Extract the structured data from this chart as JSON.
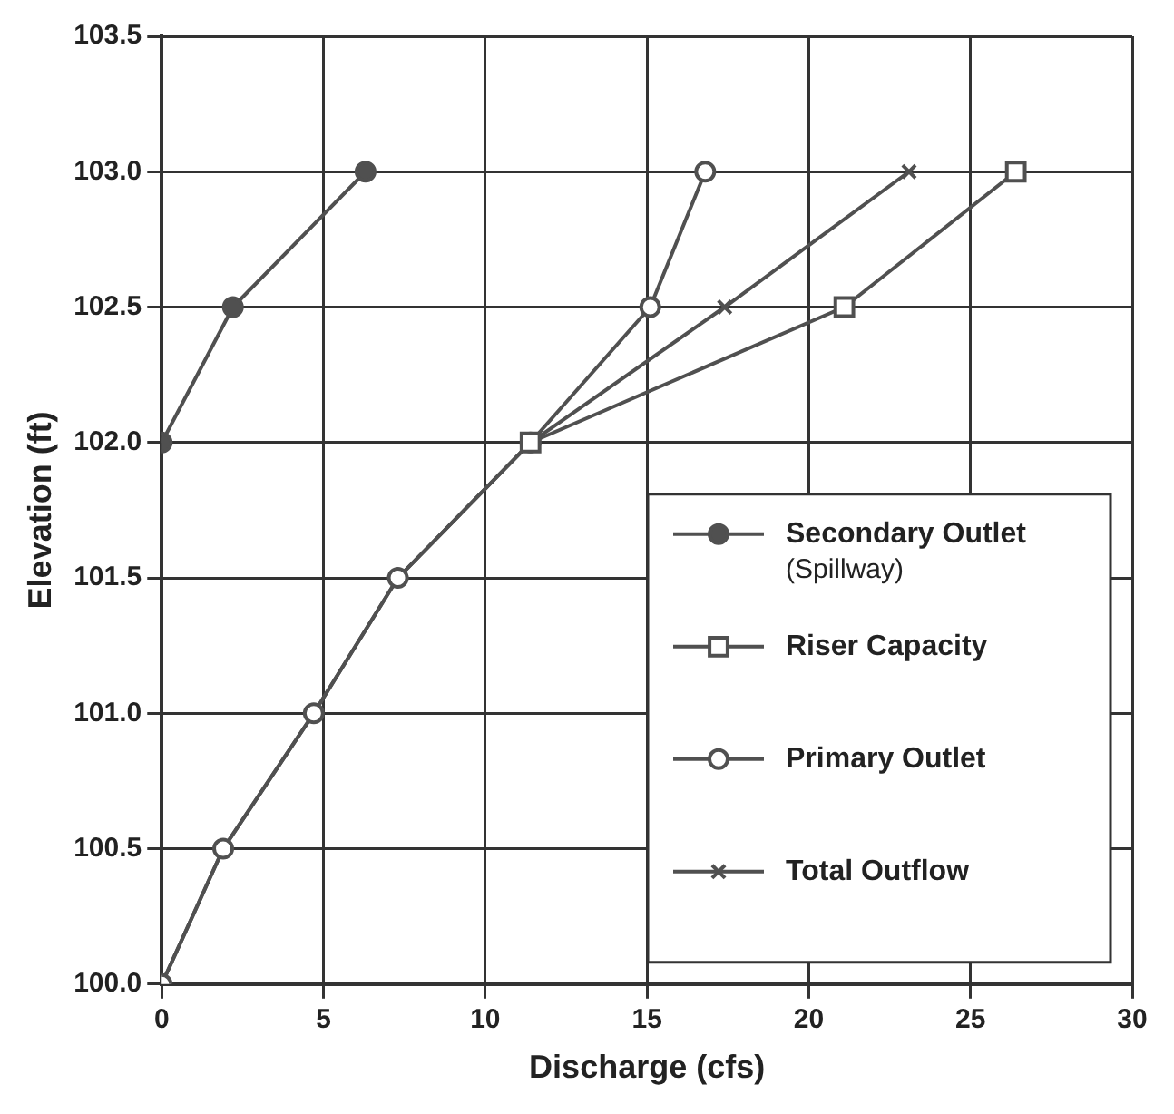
{
  "chart_data": {
    "type": "line",
    "xlabel": "Discharge (cfs)",
    "ylabel": "Elevation (ft)",
    "xlim": [
      0,
      30
    ],
    "xticks": [
      0,
      5,
      10,
      15,
      20,
      25,
      30
    ],
    "ylim": [
      100,
      103.5
    ],
    "yticks": [
      {
        "value": 100,
        "label": "100.0"
      },
      {
        "value": 100.5,
        "label": "100.5"
      },
      {
        "value": 101,
        "label": "101.0"
      },
      {
        "value": 101.5,
        "label": "101.5"
      },
      {
        "value": 102,
        "label": "102.0"
      },
      {
        "value": 102.5,
        "label": "102.5"
      },
      {
        "value": 103,
        "label": "103.0"
      },
      {
        "value": 103.5,
        "label": "103.5"
      }
    ],
    "grid": true,
    "legend": "bottom right",
    "line_style": "solid",
    "series": [
      {
        "name": "Secondary Outlet (Spillway)",
        "color": "#505050",
        "marker": "circle",
        "x": [
          0,
          2.2,
          6.3
        ],
        "values": [
          102,
          102.5,
          103
        ]
      },
      {
        "name": "Riser Capacity",
        "color": "#505050",
        "marker": "square",
        "x": [
          11.4,
          21.1,
          26.4
        ],
        "values": [
          102,
          102.5,
          103
        ]
      },
      {
        "name": "Primary Outlet",
        "color": "#505050",
        "marker": "circle",
        "x": [
          0,
          1.9,
          4.7,
          7.3,
          11.4,
          15.1,
          16.8
        ],
        "values": [
          100,
          100.5,
          101,
          101.5,
          102,
          102.5,
          103
        ]
      },
      {
        "name": "Total Outflow",
        "color": "#505050",
        "marker": "cross",
        "x": [
          0,
          1.9,
          4.7,
          7.3,
          11.4,
          17.4,
          23.1
        ],
        "values": [
          100,
          100.5,
          101,
          101.5,
          102,
          102.5,
          103
        ]
      }
    ]
  }
}
